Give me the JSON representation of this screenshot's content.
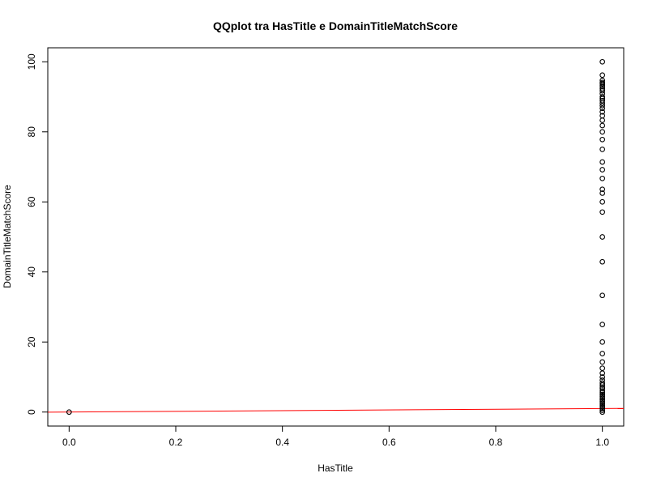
{
  "chart_data": {
    "type": "scatter",
    "title": "QQplot tra HasTitle e DomainTitleMatchScore",
    "xlabel": "HasTitle",
    "ylabel": "DomainTitleMatchScore",
    "xlim": [
      -0.04,
      1.04
    ],
    "ylim": [
      -4,
      104
    ],
    "xticks": [
      0.0,
      0.2,
      0.4,
      0.6,
      0.8,
      1.0
    ],
    "xtick_labels": [
      "0.0",
      "0.2",
      "0.4",
      "0.6",
      "0.8",
      "1.0"
    ],
    "yticks": [
      0,
      20,
      40,
      60,
      80,
      100
    ],
    "ytick_labels": [
      "0",
      "20",
      "40",
      "60",
      "80",
      "100"
    ],
    "grid": false,
    "legend": "none",
    "points": [
      {
        "x": 0,
        "y": 0
      },
      {
        "x": 1,
        "y": 0
      },
      {
        "x": 1,
        "y": 0.5
      },
      {
        "x": 1,
        "y": 1
      },
      {
        "x": 1,
        "y": 1.5
      },
      {
        "x": 1,
        "y": 2
      },
      {
        "x": 1,
        "y": 2.5
      },
      {
        "x": 1,
        "y": 3
      },
      {
        "x": 1,
        "y": 3.5
      },
      {
        "x": 1,
        "y": 4
      },
      {
        "x": 1,
        "y": 4.5
      },
      {
        "x": 1,
        "y": 5
      },
      {
        "x": 1,
        "y": 5.5
      },
      {
        "x": 1,
        "y": 6
      },
      {
        "x": 1,
        "y": 6.7
      },
      {
        "x": 1,
        "y": 7.1
      },
      {
        "x": 1,
        "y": 7.7
      },
      {
        "x": 1,
        "y": 8.3
      },
      {
        "x": 1,
        "y": 9.1
      },
      {
        "x": 1,
        "y": 10
      },
      {
        "x": 1,
        "y": 11.1
      },
      {
        "x": 1,
        "y": 12.5
      },
      {
        "x": 1,
        "y": 14.3
      },
      {
        "x": 1,
        "y": 16.7
      },
      {
        "x": 1,
        "y": 20
      },
      {
        "x": 1,
        "y": 25
      },
      {
        "x": 1,
        "y": 33.3
      },
      {
        "x": 1,
        "y": 42.9
      },
      {
        "x": 1,
        "y": 50
      },
      {
        "x": 1,
        "y": 57.1
      },
      {
        "x": 1,
        "y": 60
      },
      {
        "x": 1,
        "y": 62.5
      },
      {
        "x": 1,
        "y": 63.6
      },
      {
        "x": 1,
        "y": 66.7
      },
      {
        "x": 1,
        "y": 69.2
      },
      {
        "x": 1,
        "y": 71.4
      },
      {
        "x": 1,
        "y": 75
      },
      {
        "x": 1,
        "y": 77.8
      },
      {
        "x": 1,
        "y": 80
      },
      {
        "x": 1,
        "y": 81.8
      },
      {
        "x": 1,
        "y": 83.3
      },
      {
        "x": 1,
        "y": 84.6
      },
      {
        "x": 1,
        "y": 85.7
      },
      {
        "x": 1,
        "y": 86.7
      },
      {
        "x": 1,
        "y": 87.5
      },
      {
        "x": 1,
        "y": 88.2
      },
      {
        "x": 1,
        "y": 88.9
      },
      {
        "x": 1,
        "y": 89.5
      },
      {
        "x": 1,
        "y": 90
      },
      {
        "x": 1,
        "y": 90.9
      },
      {
        "x": 1,
        "y": 91.7
      },
      {
        "x": 1,
        "y": 92.3
      },
      {
        "x": 1,
        "y": 92.9
      },
      {
        "x": 1,
        "y": 93.3
      },
      {
        "x": 1,
        "y": 93.8
      },
      {
        "x": 1,
        "y": 94.1
      },
      {
        "x": 1,
        "y": 94.7
      },
      {
        "x": 1,
        "y": 96.2
      },
      {
        "x": 1,
        "y": 100
      }
    ],
    "reference_line": {
      "x": [
        -0.04,
        1.04
      ],
      "y": [
        -0.04,
        1.04
      ],
      "color": "#ff0000"
    },
    "colors": {
      "points": "#000000",
      "line": "#ff0000",
      "axes": "#000000"
    }
  }
}
